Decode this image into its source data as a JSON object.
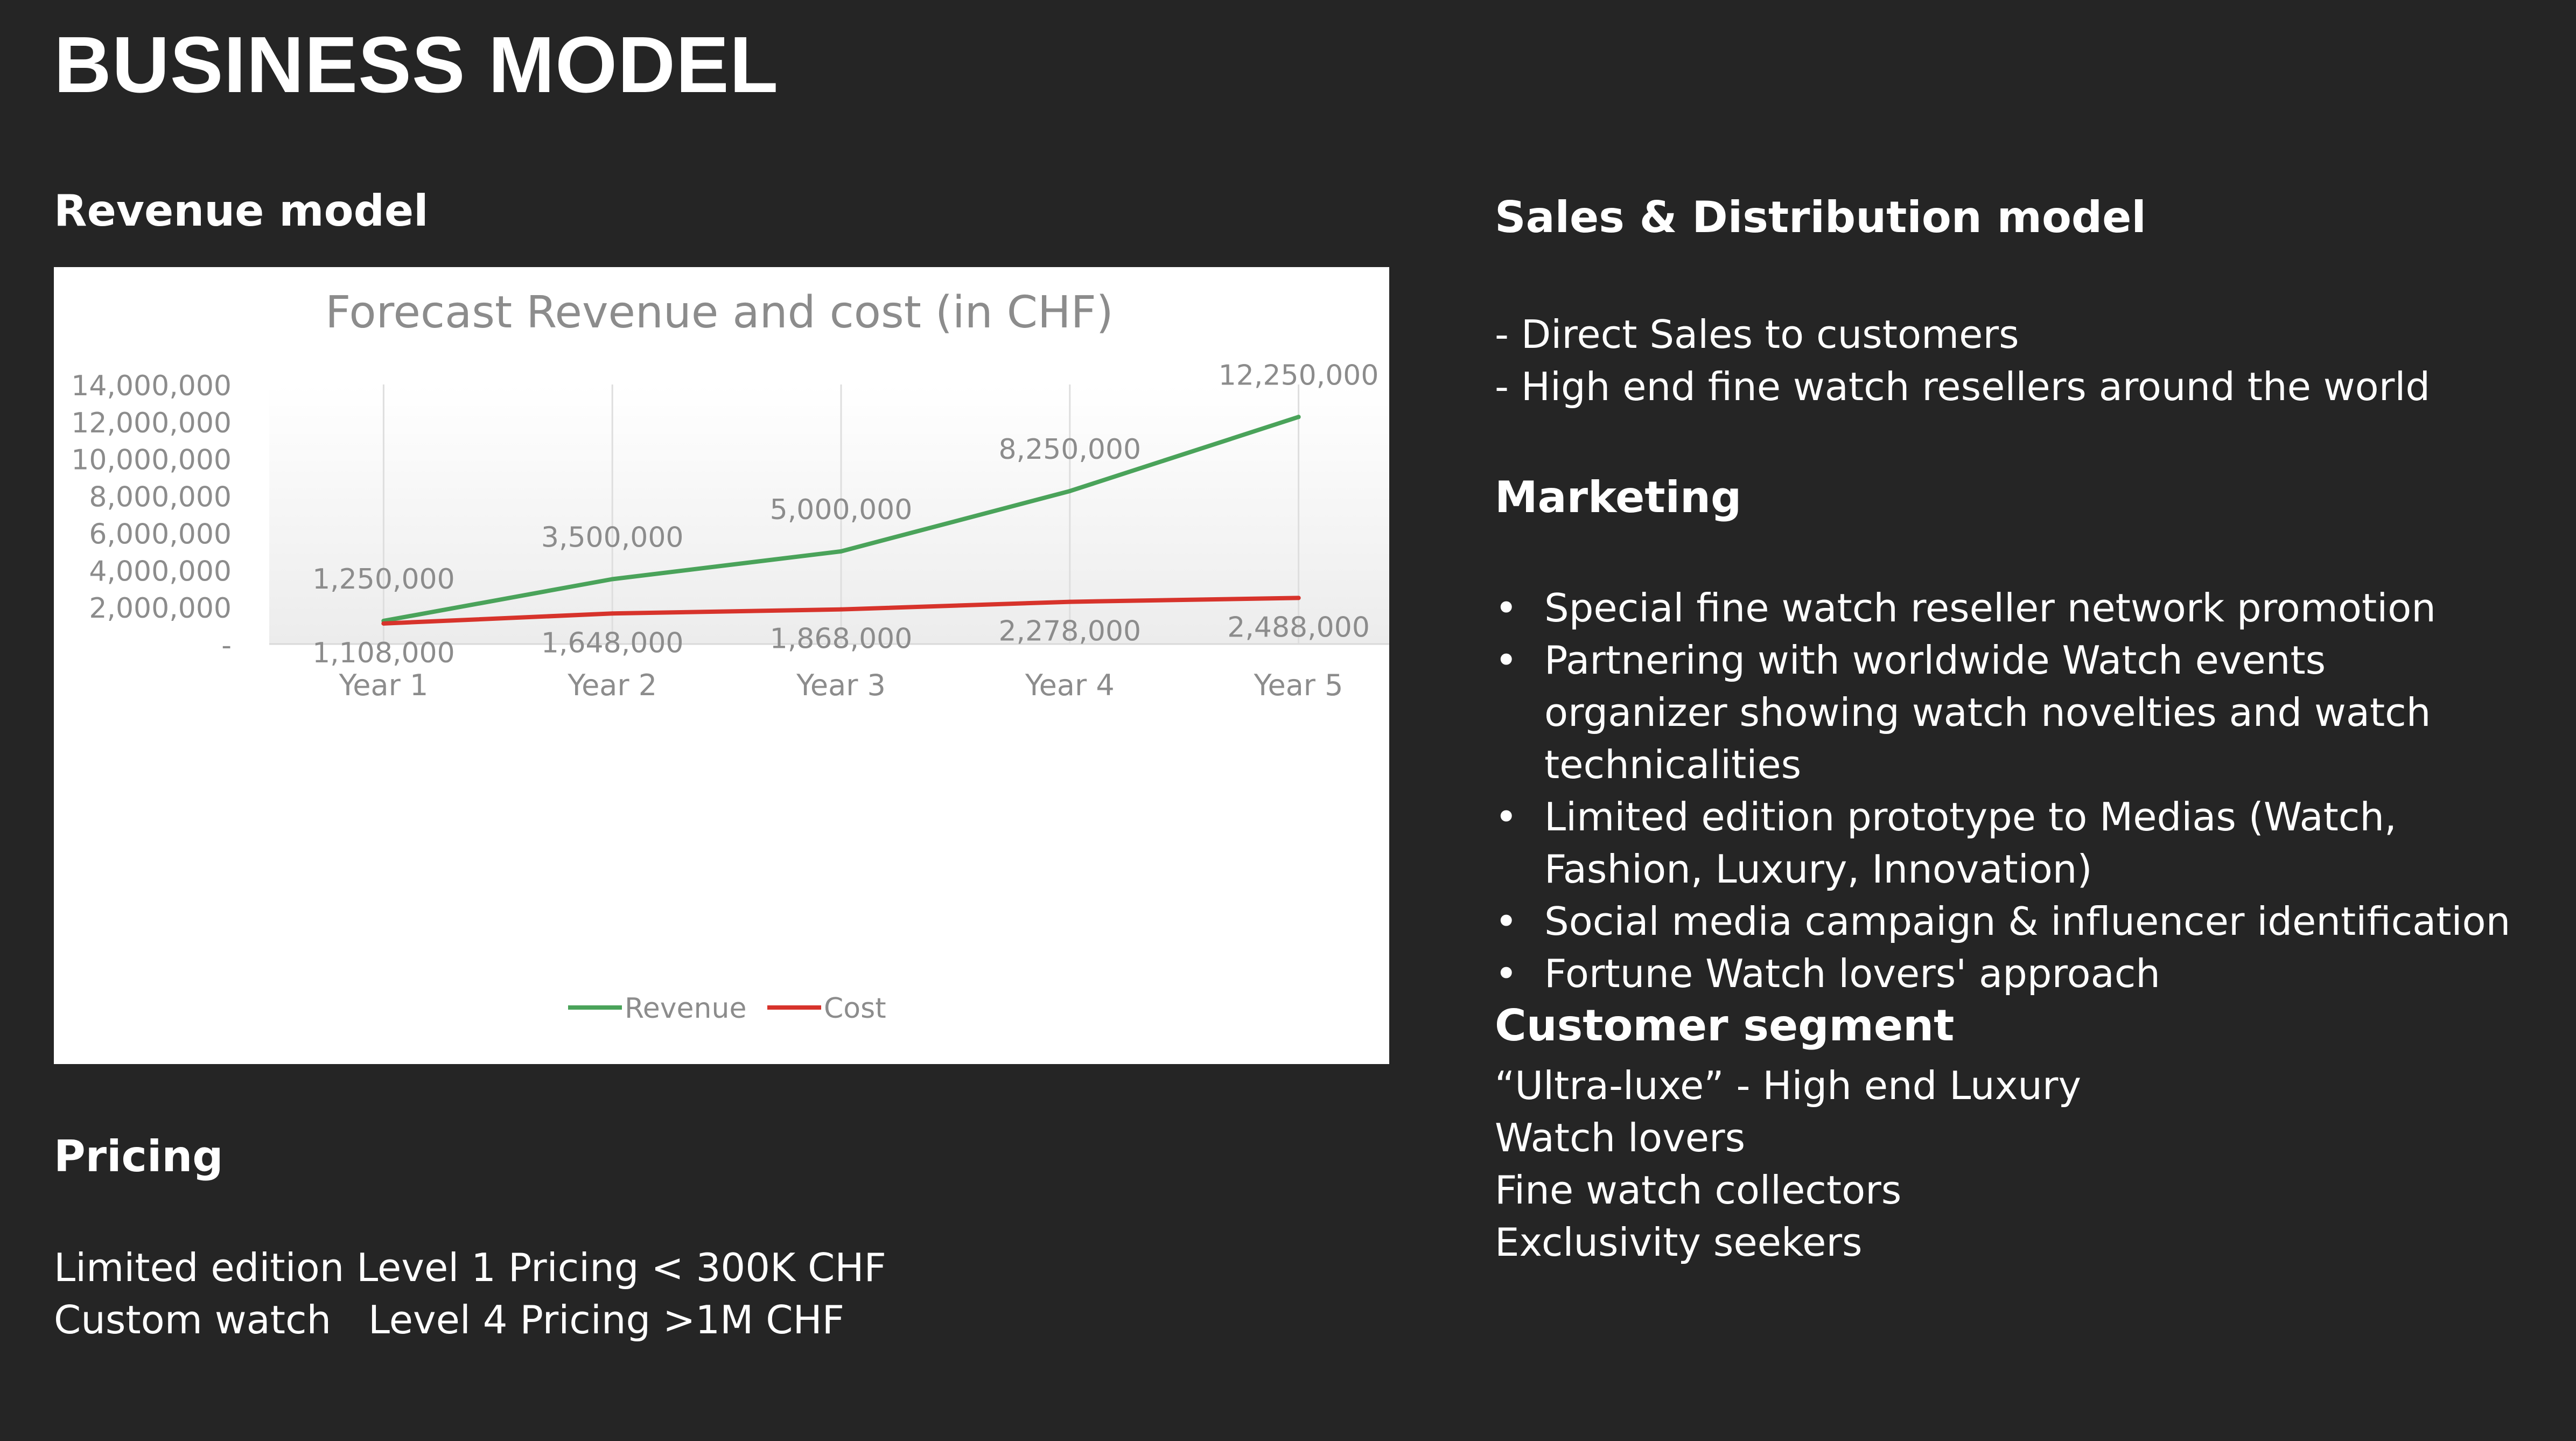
{
  "title": "BUSINESS MODEL",
  "revenue_model": {
    "heading": "Revenue model"
  },
  "pricing": {
    "heading": "Pricing",
    "lines": [
      "Limited edition Level 1 Pricing < 300K CHF",
      "Custom watch   Level 4 Pricing >1M CHF"
    ]
  },
  "sales": {
    "heading": "Sales & Distribution model",
    "lines": [
      "- Direct Sales to customers",
      "- High end fine watch resellers around the world"
    ]
  },
  "marketing": {
    "heading": "Marketing",
    "bullet_glyph": "•",
    "items": [
      "Special fine watch reseller network promotion",
      "Partnering with worldwide Watch events organizer showing watch novelties and watch technicalities",
      "Limited edition prototype to Medias (Watch, Fashion, Luxury, Innovation)",
      "Social media campaign & influencer identification",
      "Fortune Watch lovers' approach"
    ]
  },
  "customer_segment": {
    "heading": "Customer segment",
    "lines": [
      "“Ultra-luxe” - High end Luxury",
      "Watch lovers",
      "Fine watch collectors",
      "Exclusivity seekers"
    ]
  },
  "colors": {
    "background": "#252525",
    "revenue": "#4aa35a",
    "cost": "#d7332b",
    "chart_text": "#8c8c8c"
  },
  "chart_data": {
    "type": "line",
    "title": "Forecast Revenue and cost (in CHF)",
    "categories": [
      "Year 1",
      "Year 2",
      "Year 3",
      "Year 4",
      "Year 5"
    ],
    "series": [
      {
        "name": "Revenue",
        "color": "#4aa35a",
        "values": [
          1250000,
          3500000,
          5000000,
          8250000,
          12250000
        ],
        "labels": [
          "1,250,000",
          "3,500,000",
          "5,000,000",
          "8,250,000",
          "12,250,000"
        ]
      },
      {
        "name": "Cost",
        "color": "#d7332b",
        "values": [
          1108000,
          1648000,
          1868000,
          2278000,
          2488000
        ],
        "labels": [
          "1,108,000",
          "1,648,000",
          "1,868,000",
          "2,278,000",
          "2,488,000"
        ]
      }
    ],
    "ylim": [
      0,
      14000000
    ],
    "yticks": [
      0,
      2000000,
      4000000,
      6000000,
      8000000,
      10000000,
      12000000,
      14000000
    ],
    "ytick_labels": [
      "-",
      "2,000,000",
      "4,000,000",
      "6,000,000",
      "8,000,000",
      "10,000,000",
      "12,000,000",
      "14,000,000"
    ],
    "grid": "vertical lines at categories",
    "legend": "bottom-center"
  }
}
